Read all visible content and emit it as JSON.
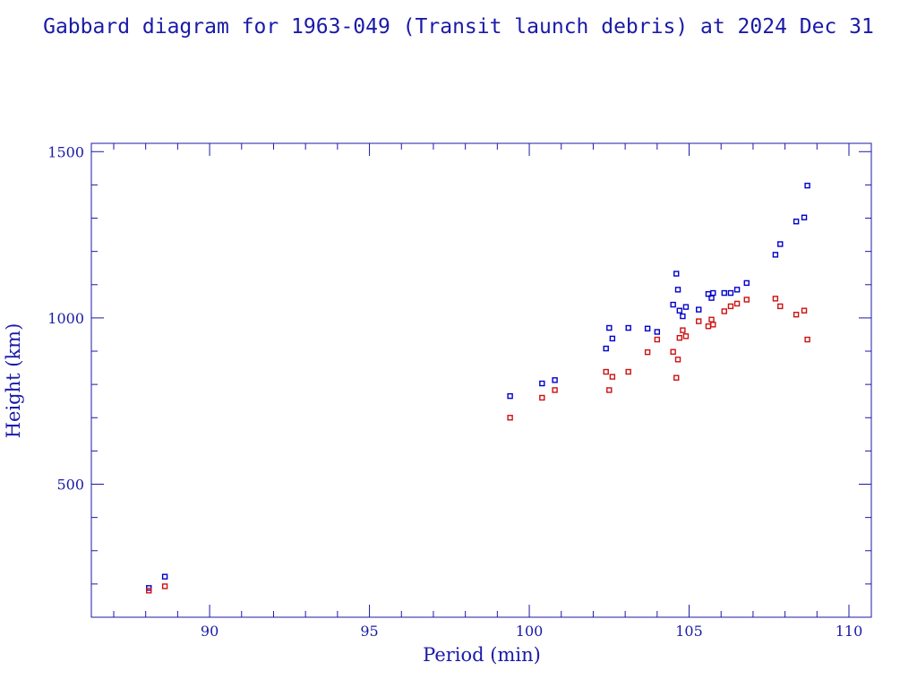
{
  "chart_data": {
    "type": "scatter",
    "title": "Gabbard diagram for 1963-049 (Transit launch debris) at 2024 Dec 31",
    "xlabel": "Period (min)",
    "ylabel": "Height (km)",
    "xlim": [
      86.3,
      110.7
    ],
    "ylim": [
      100,
      1525
    ],
    "xticks": [
      90,
      95,
      100,
      105,
      110
    ],
    "yticks": [
      500,
      1000,
      1500
    ],
    "grid": false,
    "colors": {
      "axis": "#1a1aa8",
      "apogee": "#0000cc",
      "perigee": "#cc1111"
    },
    "series": [
      {
        "key": "apogee",
        "x": [
          88.1,
          88.6,
          99.4,
          100.4,
          100.8,
          102.4,
          102.5,
          102.6,
          103.1,
          103.7,
          104.0,
          104.5,
          104.6,
          104.65,
          104.7,
          104.8,
          104.9,
          105.3,
          105.6,
          105.7,
          105.75,
          106.1,
          106.3,
          106.5,
          106.8,
          107.7,
          107.85,
          108.35,
          108.6,
          108.7
        ],
        "y": [
          188,
          222,
          765,
          803,
          813,
          908,
          970,
          938,
          970,
          968,
          958,
          1040,
          1133,
          1085,
          1022,
          1005,
          1033,
          1025,
          1072,
          1060,
          1075,
          1075,
          1075,
          1085,
          1105,
          1190,
          1222,
          1290,
          1302,
          1398
        ]
      },
      {
        "key": "perigee",
        "x": [
          88.1,
          88.6,
          99.4,
          100.4,
          100.8,
          102.4,
          102.5,
          102.6,
          103.1,
          103.7,
          104.0,
          104.5,
          104.6,
          104.65,
          104.7,
          104.8,
          104.9,
          105.3,
          105.6,
          105.7,
          105.75,
          106.1,
          106.3,
          106.5,
          106.8,
          107.7,
          107.85,
          108.35,
          108.6,
          108.7
        ],
        "y": [
          180,
          193,
          700,
          760,
          783,
          838,
          783,
          823,
          838,
          897,
          935,
          898,
          820,
          875,
          940,
          963,
          945,
          990,
          975,
          995,
          980,
          1020,
          1035,
          1043,
          1055,
          1058,
          1035,
          1010,
          1022,
          935
        ]
      }
    ]
  }
}
